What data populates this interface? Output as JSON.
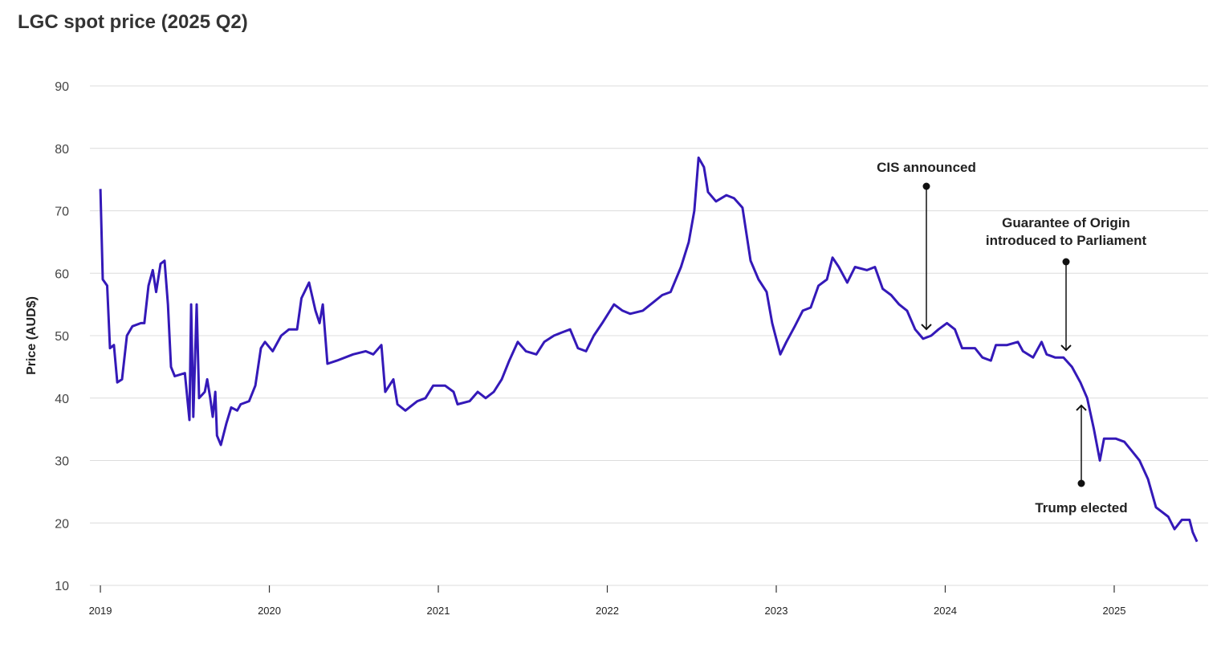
{
  "chart_data": {
    "type": "line",
    "title": "LGC spot price (2025 Q2)",
    "y_label": "Price (AUD$)",
    "xlim": [
      2018.938,
      2025.556
    ],
    "xticks": [
      2019,
      2020,
      2021,
      2022,
      2023,
      2024,
      2025
    ],
    "ylim": [
      10,
      90
    ],
    "yticks": [
      10,
      20,
      30,
      40,
      50,
      60,
      70,
      80,
      90
    ],
    "grid": true,
    "annotations": [
      "CIS announced",
      "Guarantee of Origin introduced to Parliament",
      "Trump elected"
    ],
    "x": [
      2019.0,
      2019.014,
      2019.04,
      2019.057,
      2019.08,
      2019.1,
      2019.128,
      2019.157,
      2019.19,
      2019.24,
      2019.26,
      2019.285,
      2019.31,
      2019.33,
      2019.356,
      2019.38,
      2019.4,
      2019.418,
      2019.44,
      2019.5,
      2019.527,
      2019.537,
      2019.55,
      2019.57,
      2019.584,
      2019.618,
      2019.632,
      2019.65,
      2019.665,
      2019.68,
      2019.69,
      2019.713,
      2019.746,
      2019.774,
      2019.81,
      2019.83,
      2019.88,
      2019.917,
      2019.95,
      2019.974,
      2020.02,
      2020.07,
      2020.116,
      2020.164,
      2020.19,
      2020.235,
      2020.273,
      2020.297,
      2020.316,
      2020.344,
      2020.4,
      2020.496,
      2020.57,
      2020.615,
      2020.663,
      2020.686,
      2020.734,
      2020.758,
      2020.805,
      2020.876,
      2020.924,
      2020.97,
      2021.04,
      2021.09,
      2021.114,
      2021.185,
      2021.233,
      2021.28,
      2021.328,
      2021.375,
      2021.42,
      2021.47,
      2021.518,
      2021.58,
      2021.627,
      2021.684,
      2021.73,
      2021.78,
      2021.826,
      2021.874,
      2021.92,
      2021.97,
      2022.04,
      2022.09,
      2022.135,
      2022.21,
      2022.28,
      2022.325,
      2022.375,
      2022.436,
      2022.482,
      2022.515,
      2022.54,
      2022.572,
      2022.596,
      2022.643,
      2022.705,
      2022.75,
      2022.8,
      2022.848,
      2022.895,
      2022.943,
      2022.976,
      2023.024,
      2023.06,
      2023.11,
      2023.157,
      2023.204,
      2023.25,
      2023.3,
      2023.333,
      2023.37,
      2023.42,
      2023.466,
      2023.537,
      2023.584,
      2023.63,
      2023.68,
      2023.727,
      2023.774,
      2023.822,
      2023.869,
      2023.917,
      2023.96,
      2024.01,
      2024.057,
      2024.1,
      2024.176,
      2024.22,
      2024.27,
      2024.3,
      2024.366,
      2024.43,
      2024.46,
      2024.52,
      2024.57,
      2024.6,
      2024.65,
      2024.7,
      2024.75,
      2024.8,
      2024.84,
      2024.88,
      2024.915,
      2024.94,
      2025.01,
      2025.06,
      2025.105,
      2025.15,
      2025.2,
      2025.247,
      2025.32,
      2025.357,
      2025.4,
      2025.446,
      2025.465,
      2025.49
    ],
    "series": [
      {
        "name": "LGC spot price",
        "color": "#3419b8",
        "values": [
          73.5,
          59,
          58,
          48,
          48.5,
          42.5,
          43,
          50,
          51.5,
          52,
          52,
          58,
          60.5,
          57,
          61.5,
          62,
          55,
          45,
          43.5,
          44,
          36.5,
          55,
          37,
          55,
          40,
          41,
          43,
          40,
          37,
          41,
          34,
          32.5,
          36,
          38.5,
          38,
          39,
          39.5,
          42,
          48,
          49,
          47.5,
          50,
          51,
          51,
          56,
          58.5,
          54,
          52,
          55,
          45.5,
          46,
          47,
          47.5,
          47,
          48.5,
          41,
          43,
          39,
          38,
          39.5,
          40,
          42,
          42,
          41,
          39,
          39.5,
          41,
          40,
          41,
          43,
          46,
          49,
          47.5,
          47,
          49,
          50,
          50.5,
          51,
          48,
          47.5,
          50,
          52,
          55,
          54,
          53.5,
          54,
          55.5,
          56.5,
          57,
          61,
          65,
          70,
          78.5,
          77,
          73,
          71.5,
          72.5,
          72,
          70.5,
          62,
          59,
          57,
          52,
          47,
          49,
          51.5,
          54,
          54.5,
          58,
          59,
          62.5,
          61,
          58.5,
          61,
          60.5,
          61,
          57.5,
          56.5,
          55,
          54,
          51,
          49.5,
          50,
          51,
          52,
          51,
          48,
          48,
          46.5,
          46,
          48.5,
          48.5,
          49,
          47.5,
          46.5,
          49,
          47,
          46.5,
          46.5,
          45,
          42.5,
          40,
          35,
          30,
          33.5,
          33.5,
          33,
          31.5,
          30,
          27,
          22.5,
          21,
          19,
          20.5,
          20.5,
          18.5,
          17
        ]
      }
    ]
  }
}
